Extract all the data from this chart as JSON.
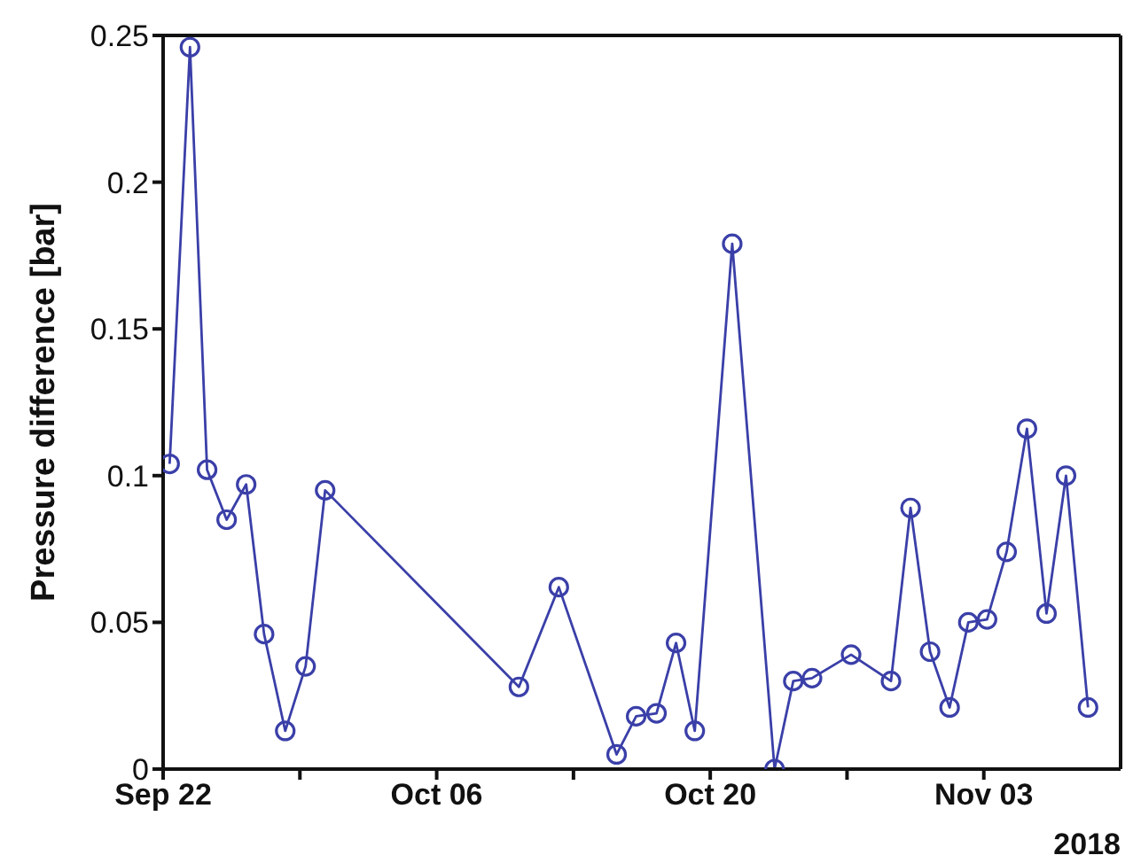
{
  "chart_data": {
    "type": "line",
    "ylabel": "Pressure difference [bar]",
    "annotations": [
      "2018"
    ],
    "x": [
      "2018-09-22T08:00",
      "2018-09-23T09:00",
      "2018-09-24T06:00",
      "2018-09-25T06:00",
      "2018-09-26T06:00",
      "2018-09-27T04:00",
      "2018-09-28T06:00",
      "2018-09-29T07:00",
      "2018-09-30T07:00",
      "2018-10-10T05:00",
      "2018-10-12T06:00",
      "2018-10-15T05:00",
      "2018-10-16T05:00",
      "2018-10-17T06:00",
      "2018-10-18T06:00",
      "2018-10-19T05:00",
      "2018-10-21T03:00",
      "2018-10-23T07:00",
      "2018-10-24T06:00",
      "2018-10-25T05:00",
      "2018-10-27T05:00",
      "2018-10-29T06:00",
      "2018-10-30T06:00",
      "2018-10-31T06:00",
      "2018-11-01T06:00",
      "2018-11-02T05:00",
      "2018-11-03T04:00",
      "2018-11-04T04:00",
      "2018-11-05T05:00",
      "2018-11-06T05:00",
      "2018-11-07T05:00",
      "2018-11-08T08:00"
    ],
    "series": [
      {
        "color": "#3a3fa8",
        "values": [
          0.104,
          0.246,
          0.102,
          0.085,
          0.097,
          0.046,
          0.013,
          0.035,
          0.095,
          0.028,
          0.062,
          0.005,
          0.018,
          0.019,
          0.043,
          0.013,
          0.179,
          0,
          0.03,
          0.031,
          0.039,
          0.03,
          0.089,
          0.04,
          0.021,
          0.05,
          0.051,
          0.074,
          0.116,
          0.053,
          0.1,
          0.021
        ]
      }
    ],
    "xlim": [
      "2018-09-22",
      "2018-11-10"
    ],
    "xticks": [
      {
        "value": "2018-09-22",
        "label": "Sep 22"
      },
      {
        "value": "2018-09-29",
        "label": null
      },
      {
        "value": "2018-10-06",
        "label": "Oct 06"
      },
      {
        "value": "2018-10-13",
        "label": null
      },
      {
        "value": "2018-10-20",
        "label": "Oct 20"
      },
      {
        "value": "2018-10-27",
        "label": null
      },
      {
        "value": "2018-11-03",
        "label": "Nov 03"
      }
    ],
    "ylim": [
      0,
      0.25
    ],
    "yticks": [
      0,
      0.05,
      0.1,
      0.15,
      0.2,
      0.25
    ],
    "grid": false,
    "legend": false,
    "marker": "circle",
    "line_style": "solid"
  }
}
